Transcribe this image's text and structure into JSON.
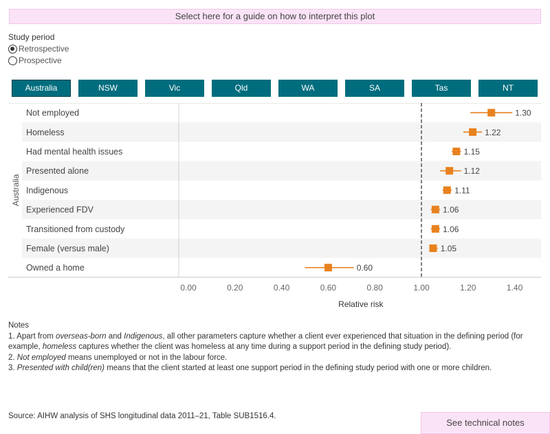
{
  "guide_button": "Select here for a guide on how to interpret this plot",
  "study_period": {
    "title": "Study period",
    "options": [
      {
        "label": "Retrospective",
        "selected": true
      },
      {
        "label": "Prospective",
        "selected": false
      }
    ]
  },
  "tabs": [
    "Australia",
    "NSW",
    "Vic",
    "Qld",
    "WA",
    "SA",
    "Tas",
    "NT"
  ],
  "active_tab": "Australia",
  "chart_data": {
    "type": "scatter",
    "subtype": "forest-plot",
    "ylabel": "Australia",
    "xlabel": "Relative risk",
    "xlim": [
      0,
      1.5
    ],
    "xticks": [
      "0.00",
      "0.20",
      "0.40",
      "0.60",
      "0.80",
      "1.00",
      "1.20",
      "1.40"
    ],
    "reference_line": 1.0,
    "marker_color": "#e8821e",
    "categories": [
      "Not employed",
      "Homeless",
      "Had mental health issues",
      "Presented alone",
      "Indigenous",
      "Experienced FDV",
      "Transitioned from custody",
      "Female (versus male)",
      "Owned a home"
    ],
    "values": [
      1.3,
      1.22,
      1.15,
      1.12,
      1.11,
      1.06,
      1.06,
      1.05,
      0.6
    ],
    "value_labels": [
      "1.30",
      "1.22",
      "1.15",
      "1.12",
      "1.11",
      "1.06",
      "1.06",
      "1.05",
      "0.60"
    ],
    "ci_low": [
      1.21,
      1.18,
      1.13,
      1.08,
      1.09,
      1.04,
      1.04,
      1.04,
      0.5
    ],
    "ci_high": [
      1.39,
      1.26,
      1.17,
      1.17,
      1.13,
      1.08,
      1.08,
      1.07,
      0.71
    ]
  },
  "notes": {
    "title": "Notes",
    "items": [
      [
        {
          "t": "1.  Apart from "
        },
        {
          "t": "overseas-born",
          "i": true
        },
        {
          "t": "  and "
        },
        {
          "t": "Indigenous",
          "i": true
        },
        {
          "t": ", all other parameters capture whether a client ever experienced that situation in the defining period (for example, "
        },
        {
          "t": "homeless",
          "i": true
        },
        {
          "t": "  captures whether the client was homeless at any time during a support period in the defining study period)."
        }
      ],
      [
        {
          "t": "2.  "
        },
        {
          "t": "Not employed",
          "i": true
        },
        {
          "t": "  means unemployed or not in the labour force."
        }
      ],
      [
        {
          "t": "3.  "
        },
        {
          "t": "Presented with child(ren)",
          "i": true
        },
        {
          "t": "  means that the client started at least one support period in the defining study period with one or more children."
        }
      ]
    ]
  },
  "source": "Source: AIHW analysis of SHS longitudinal data 2011–21, Table SUB1516.4.",
  "tech_notes_button": "See technical notes"
}
